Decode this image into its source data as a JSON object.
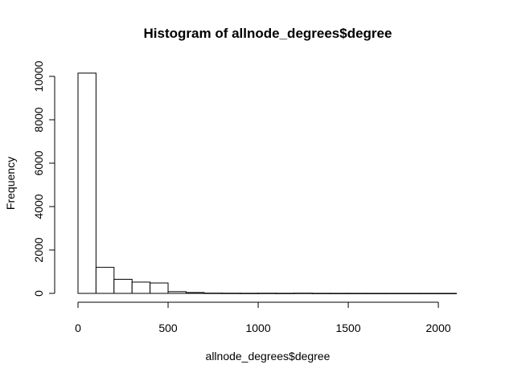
{
  "chart_data": {
    "type": "bar",
    "title": "Histogram of allnode_degrees$degree",
    "xlabel": "allnode_degrees$degree",
    "ylabel": "Frequency",
    "bin_width": 100,
    "bins": [
      {
        "x0": 0,
        "x1": 100,
        "count": 10150
      },
      {
        "x0": 100,
        "x1": 200,
        "count": 1200
      },
      {
        "x0": 200,
        "x1": 300,
        "count": 650
      },
      {
        "x0": 300,
        "x1": 400,
        "count": 520
      },
      {
        "x0": 400,
        "x1": 500,
        "count": 480
      },
      {
        "x0": 500,
        "x1": 600,
        "count": 80
      },
      {
        "x0": 600,
        "x1": 700,
        "count": 40
      },
      {
        "x0": 700,
        "x1": 800,
        "count": 12
      },
      {
        "x0": 800,
        "x1": 900,
        "count": 8
      },
      {
        "x0": 900,
        "x1": 1000,
        "count": 6
      },
      {
        "x0": 1000,
        "x1": 1100,
        "count": 8
      },
      {
        "x0": 1100,
        "x1": 1200,
        "count": 5
      },
      {
        "x0": 1200,
        "x1": 1300,
        "count": 10
      },
      {
        "x0": 1300,
        "x1": 1400,
        "count": 4
      },
      {
        "x0": 1400,
        "x1": 1500,
        "count": 3
      },
      {
        "x0": 1500,
        "x1": 1600,
        "count": 3
      },
      {
        "x0": 1600,
        "x1": 1700,
        "count": 2
      },
      {
        "x0": 1700,
        "x1": 1800,
        "count": 2
      },
      {
        "x0": 1800,
        "x1": 1900,
        "count": 2
      },
      {
        "x0": 1900,
        "x1": 2000,
        "count": 2
      },
      {
        "x0": 2000,
        "x1": 2100,
        "count": 2
      }
    ],
    "xlim": [
      0,
      2100
    ],
    "ylim": [
      0,
      10150
    ],
    "xticks": [
      0,
      500,
      1000,
      1500,
      2000
    ],
    "yticks": [
      0,
      2000,
      4000,
      6000,
      8000,
      10000
    ],
    "grid": false,
    "legend": "none"
  }
}
